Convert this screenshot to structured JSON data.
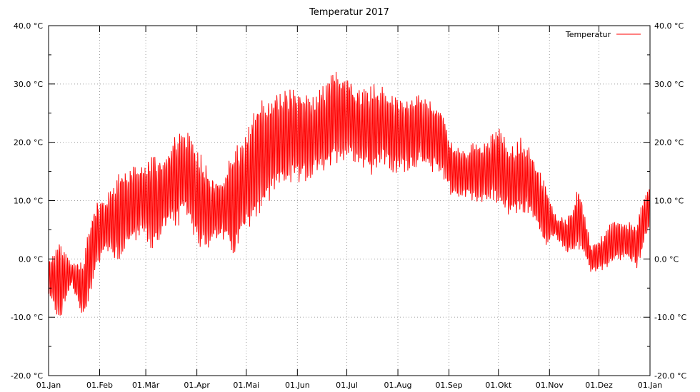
{
  "chart_data": {
    "type": "line",
    "title": "Temperatur 2017",
    "xlabel": "",
    "ylabel": "",
    "legend": {
      "entry": "Temperatur",
      "position": "top-right"
    },
    "series_color": "#ff0000",
    "grid": true,
    "xlim": [
      "2017-01-01",
      "2018-01-01"
    ],
    "x_ticks": [
      "01.Jan",
      "01.Feb",
      "01.Mär",
      "01.Apr",
      "01.Mai",
      "01.Jun",
      "01.Jul",
      "01.Aug",
      "01.Sep",
      "01.Okt",
      "01.Nov",
      "01.Dez",
      "01.Jan"
    ],
    "ylim": [
      -20,
      40
    ],
    "y_ticks": [
      "-20.0 °C",
      "-10.0 °C",
      "0.0 °C",
      "10.0 °C",
      "20.0 °C",
      "30.0 °C",
      "40.0 °C"
    ],
    "series": [
      {
        "name": "Temperatur",
        "x_dates": [
          "2017-01-01",
          "2017-01-08",
          "2017-01-15",
          "2017-01-22",
          "2017-01-29",
          "2017-02-05",
          "2017-02-12",
          "2017-02-19",
          "2017-02-26",
          "2017-03-05",
          "2017-03-12",
          "2017-03-19",
          "2017-03-26",
          "2017-04-02",
          "2017-04-09",
          "2017-04-16",
          "2017-04-23",
          "2017-04-30",
          "2017-05-07",
          "2017-05-14",
          "2017-05-21",
          "2017-05-28",
          "2017-06-04",
          "2017-06-11",
          "2017-06-18",
          "2017-06-25",
          "2017-07-02",
          "2017-07-09",
          "2017-07-16",
          "2017-07-23",
          "2017-07-30",
          "2017-08-06",
          "2017-08-13",
          "2017-08-20",
          "2017-08-27",
          "2017-09-03",
          "2017-09-10",
          "2017-09-17",
          "2017-09-24",
          "2017-10-01",
          "2017-10-08",
          "2017-10-15",
          "2017-10-22",
          "2017-10-29",
          "2017-11-05",
          "2017-11-12",
          "2017-11-19",
          "2017-11-26",
          "2017-12-03",
          "2017-12-10",
          "2017-12-17",
          "2017-12-24",
          "2017-12-31"
        ],
        "min": [
          -8,
          -13,
          -5,
          -13,
          -5,
          0,
          -3,
          0,
          2,
          -2,
          3,
          2,
          5,
          -1,
          0,
          2,
          -3,
          2,
          4,
          6,
          10,
          10,
          10,
          12,
          12,
          14,
          15,
          14,
          12,
          14,
          12,
          13,
          14,
          13,
          13,
          9,
          9,
          8,
          8,
          7,
          5,
          6,
          5,
          0,
          3,
          0,
          -1,
          -3,
          -3,
          -2,
          -1,
          -3,
          3
        ],
        "max": [
          1,
          5,
          0,
          2,
          12,
          12,
          17,
          18,
          18,
          21,
          19,
          25,
          24,
          22,
          17,
          15,
          22,
          23,
          30,
          31,
          31,
          32,
          31,
          30,
          33,
          35,
          34,
          31,
          33,
          32,
          30,
          30,
          30,
          29,
          28,
          21,
          20,
          22,
          22,
          25,
          21,
          23,
          20,
          15,
          8,
          8,
          15,
          3,
          5,
          8,
          7,
          8,
          14
        ]
      }
    ]
  }
}
